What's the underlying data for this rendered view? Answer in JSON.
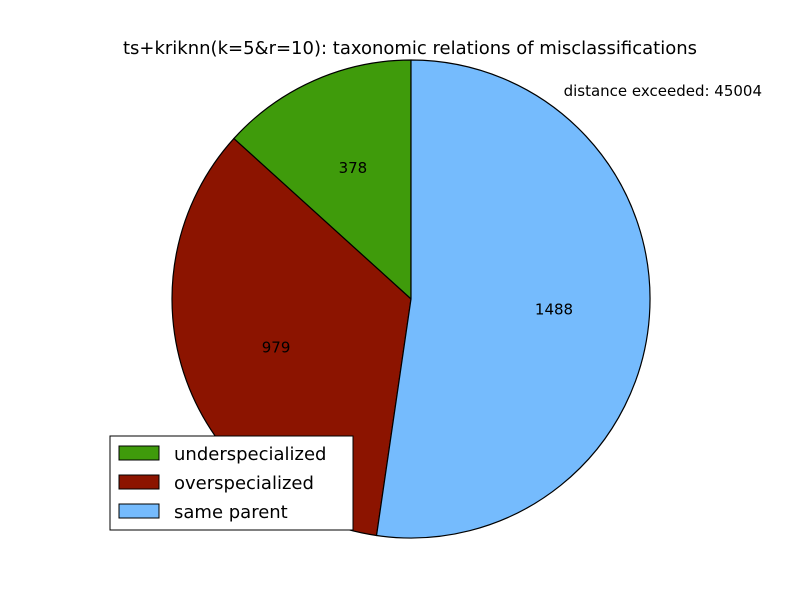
{
  "chart_data": {
    "type": "pie",
    "title": "ts+kriknn(k=5&r=10): taxonomic relations of misclassifications",
    "annotation": "distance exceeded: 45004",
    "slices": [
      {
        "label": "underspecialized",
        "value": 378,
        "color": "#3f9b0b"
      },
      {
        "label": "overspecialized",
        "value": 979,
        "color": "#8c1400"
      },
      {
        "label": "same parent",
        "value": 1488,
        "color": "#75bbfd"
      }
    ],
    "start_angle_deg": 90,
    "direction": "counterclockwise",
    "legend_position": "lower-left"
  }
}
